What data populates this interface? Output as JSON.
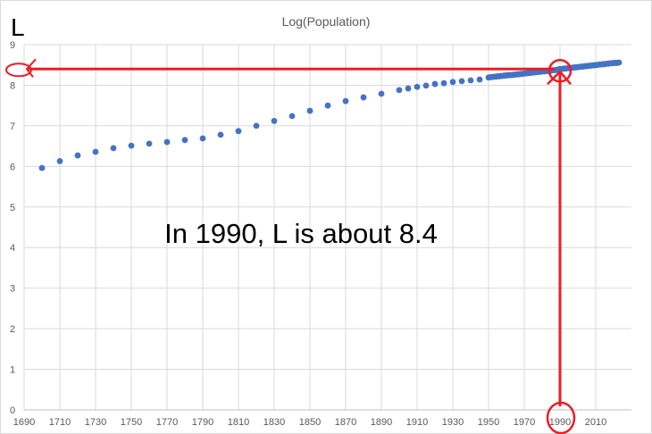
{
  "chart_data": {
    "type": "scatter",
    "title": "Log(Population)",
    "xlim": [
      1690,
      2030
    ],
    "ylim": [
      0,
      9
    ],
    "x_ticks": [
      1690,
      1710,
      1730,
      1750,
      1770,
      1790,
      1810,
      1830,
      1850,
      1870,
      1890,
      1910,
      1930,
      1950,
      1970,
      1990,
      2010
    ],
    "y_ticks": [
      0,
      1,
      2,
      3,
      4,
      5,
      6,
      7,
      8,
      9
    ],
    "grid": true,
    "series_color": "#4472C4",
    "points": [
      [
        1700,
        5.96
      ],
      [
        1710,
        6.13
      ],
      [
        1720,
        6.27
      ],
      [
        1730,
        6.36
      ],
      [
        1740,
        6.45
      ],
      [
        1750,
        6.51
      ],
      [
        1760,
        6.56
      ],
      [
        1770,
        6.6
      ],
      [
        1780,
        6.65
      ],
      [
        1790,
        6.69
      ],
      [
        1800,
        6.78
      ],
      [
        1810,
        6.87
      ],
      [
        1820,
        7.0
      ],
      [
        1830,
        7.12
      ],
      [
        1840,
        7.24
      ],
      [
        1850,
        7.37
      ],
      [
        1860,
        7.5
      ],
      [
        1870,
        7.61
      ],
      [
        1880,
        7.7
      ],
      [
        1890,
        7.79
      ],
      [
        1900,
        7.88
      ],
      [
        1905,
        7.92
      ],
      [
        1910,
        7.96
      ],
      [
        1915,
        7.99
      ],
      [
        1920,
        8.03
      ],
      [
        1925,
        8.05
      ],
      [
        1930,
        8.08
      ],
      [
        1935,
        8.1
      ],
      [
        1940,
        8.12
      ],
      [
        1945,
        8.14
      ],
      [
        1950,
        8.19
      ],
      [
        1951,
        8.2
      ],
      [
        1952,
        8.2
      ],
      [
        1953,
        8.21
      ],
      [
        1954,
        8.21
      ],
      [
        1955,
        8.22
      ],
      [
        1956,
        8.22
      ],
      [
        1957,
        8.23
      ],
      [
        1958,
        8.23
      ],
      [
        1959,
        8.24
      ],
      [
        1960,
        8.24
      ],
      [
        1961,
        8.25
      ],
      [
        1962,
        8.25
      ],
      [
        1963,
        8.25
      ],
      [
        1964,
        8.26
      ],
      [
        1965,
        8.26
      ],
      [
        1966,
        8.27
      ],
      [
        1967,
        8.27
      ],
      [
        1968,
        8.28
      ],
      [
        1969,
        8.28
      ],
      [
        1970,
        8.29
      ],
      [
        1971,
        8.29
      ],
      [
        1972,
        8.3
      ],
      [
        1973,
        8.3
      ],
      [
        1974,
        8.31
      ],
      [
        1975,
        8.31
      ],
      [
        1976,
        8.32
      ],
      [
        1977,
        8.32
      ],
      [
        1978,
        8.33
      ],
      [
        1979,
        8.33
      ],
      [
        1980,
        8.34
      ],
      [
        1981,
        8.34
      ],
      [
        1982,
        8.35
      ],
      [
        1983,
        8.35
      ],
      [
        1984,
        8.36
      ],
      [
        1985,
        8.36
      ],
      [
        1986,
        8.37
      ],
      [
        1987,
        8.37
      ],
      [
        1988,
        8.38
      ],
      [
        1989,
        8.39
      ],
      [
        1990,
        8.4
      ],
      [
        1991,
        8.4
      ],
      [
        1992,
        8.41
      ],
      [
        1993,
        8.41
      ],
      [
        1994,
        8.42
      ],
      [
        1995,
        8.42
      ],
      [
        1996,
        8.43
      ],
      [
        1997,
        8.43
      ],
      [
        1998,
        8.44
      ],
      [
        1999,
        8.44
      ],
      [
        2000,
        8.45
      ],
      [
        2001,
        8.45
      ],
      [
        2002,
        8.46
      ],
      [
        2003,
        8.46
      ],
      [
        2004,
        8.47
      ],
      [
        2005,
        8.47
      ],
      [
        2006,
        8.48
      ],
      [
        2007,
        8.48
      ],
      [
        2008,
        8.49
      ],
      [
        2009,
        8.49
      ],
      [
        2010,
        8.5
      ],
      [
        2011,
        8.5
      ],
      [
        2012,
        8.51
      ],
      [
        2013,
        8.51
      ],
      [
        2014,
        8.52
      ],
      [
        2015,
        8.52
      ],
      [
        2016,
        8.53
      ],
      [
        2017,
        8.53
      ],
      [
        2018,
        8.54
      ],
      [
        2019,
        8.54
      ],
      [
        2020,
        8.55
      ],
      [
        2021,
        8.55
      ],
      [
        2022,
        8.55
      ],
      [
        2023,
        8.56
      ]
    ],
    "annotations": {
      "axis_letter": "L",
      "text": "In 1990, L is about 8.4",
      "highlight_x": 1990,
      "highlight_y": 8.4,
      "color": "#ED1C24"
    }
  }
}
